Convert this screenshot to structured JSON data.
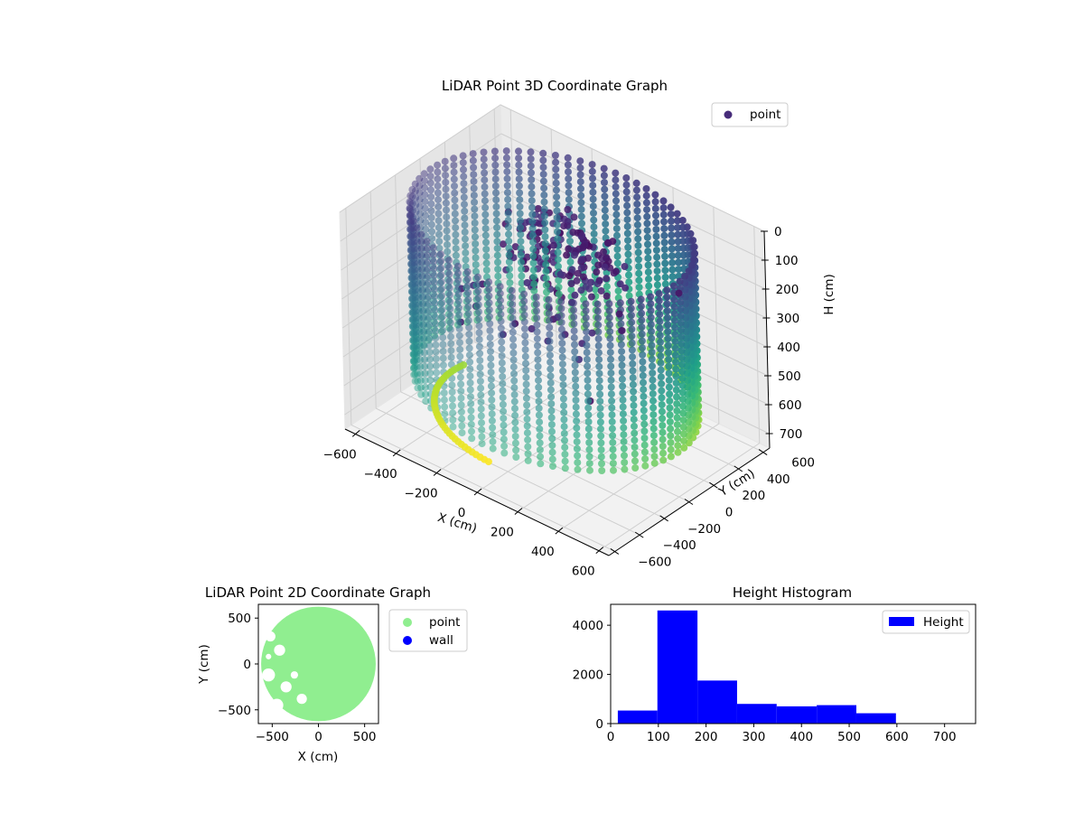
{
  "colors": {
    "viridis_dark": "#440154",
    "viridis_mid": "#21918c",
    "viridis_light": "#5ec962",
    "viridis_yellow": "#fde725",
    "point_2d": "#90ee90",
    "wall_2d": "#0000ff",
    "histogram_bar": "#0000ff",
    "legend_point_3d": "#472c7a"
  },
  "chart_data": [
    {
      "type": "scatter",
      "projection": "3d",
      "title": "LiDAR Point 3D Coordinate Graph",
      "xlabel": "X (cm)",
      "ylabel": "Y (cm)",
      "zlabel": "H (cm)",
      "xticks": [
        "−600",
        "−400",
        "−200",
        "0",
        "200",
        "400",
        "600"
      ],
      "yticks": [
        "−600",
        "−400",
        "−200",
        "0",
        "200",
        "400",
        "600"
      ],
      "zticks": [
        "0",
        "100",
        "200",
        "300",
        "400",
        "500",
        "600",
        "700"
      ],
      "xlim": [
        -650,
        650
      ],
      "ylim": [
        -650,
        650
      ],
      "zlim": [
        0,
        750
      ],
      "z_inverted": true,
      "colormap": "viridis",
      "legend": [
        "point"
      ],
      "legend_position": "upper right",
      "grid": true,
      "series": [
        {
          "name": "point",
          "shape": "circular wall of vertical point columns around origin, radius ~600 cm, heights 0–600 cm, plus an inner cluster near the center and a low arc near the floor",
          "wall_radius": 600,
          "height_range": [
            0,
            600
          ]
        }
      ]
    },
    {
      "type": "scatter",
      "title": "LiDAR Point 2D Coordinate Graph",
      "xlabel": "X (cm)",
      "ylabel": "Y (cm)",
      "xticks": [
        "−500",
        "0",
        "500"
      ],
      "yticks": [
        "−500",
        "0",
        "500"
      ],
      "xlim": [
        -650,
        650
      ],
      "ylim": [
        -650,
        650
      ],
      "legend": [
        "point",
        "wall"
      ],
      "legend_position": "outside right",
      "series": [
        {
          "name": "point",
          "shape": "filled disc, radius ~620 cm, with void holes on the left side"
        },
        {
          "name": "wall",
          "shape": "not visible (covered)"
        }
      ]
    },
    {
      "type": "bar",
      "subtype": "histogram",
      "title": "Height Histogram",
      "xticks": [
        "0",
        "100",
        "200",
        "300",
        "400",
        "500",
        "600",
        "700"
      ],
      "yticks": [
        "0",
        "2000",
        "4000"
      ],
      "xlim": [
        0,
        765
      ],
      "ylim": [
        0,
        4850
      ],
      "legend": [
        "Height"
      ],
      "legend_position": "upper right",
      "bin_edges": [
        15,
        98,
        182,
        265,
        348,
        432,
        515,
        598,
        682,
        765
      ],
      "values": [
        530,
        4600,
        1750,
        800,
        700,
        750,
        420,
        0,
        0
      ]
    }
  ]
}
